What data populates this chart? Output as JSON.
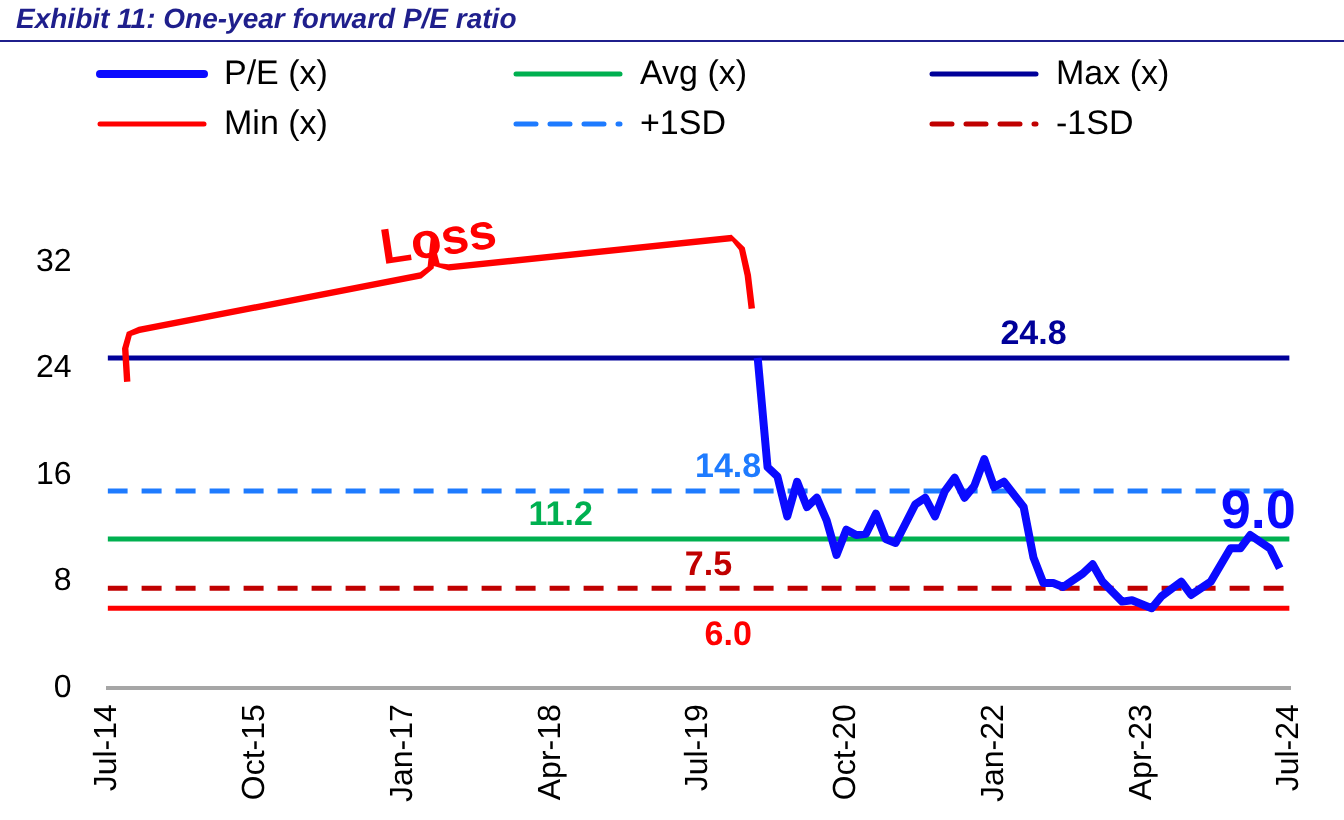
{
  "chart_data": {
    "type": "line",
    "title": "Exhibit 11: One-year forward P/E ratio",
    "xlim": [
      "2014-07",
      "2024-07"
    ],
    "xticks": [
      {
        "value": "2014-07",
        "label": "Jul-14"
      },
      {
        "value": "2015-10",
        "label": "Oct-15"
      },
      {
        "value": "2017-01",
        "label": "Jan-17"
      },
      {
        "value": "2018-04",
        "label": "Apr-18"
      },
      {
        "value": "2019-07",
        "label": "Jul-19"
      },
      {
        "value": "2020-10",
        "label": "Oct-20"
      },
      {
        "value": "2022-01",
        "label": "Jan-22"
      },
      {
        "value": "2023-04",
        "label": "Apr-23"
      },
      {
        "value": "2024-07",
        "label": "Jul-24"
      }
    ],
    "ylim": [
      0,
      32
    ],
    "yticks": [
      0,
      8,
      16,
      24,
      32
    ],
    "grid": false,
    "legend": "top",
    "marker": "none",
    "series": [
      {
        "name": "P/E (x)",
        "color": "#0a0aff",
        "line_style": "solid",
        "x": [
          "2020-01",
          "2020-02",
          "2020-03",
          "2020-04",
          "2020-05",
          "2020-06",
          "2020-07",
          "2020-08",
          "2020-09",
          "2020-10",
          "2020-11",
          "2020-12",
          "2021-01",
          "2021-02",
          "2021-03",
          "2021-05",
          "2021-06",
          "2021-07",
          "2021-08",
          "2021-09",
          "2021-10",
          "2021-11",
          "2021-12",
          "2022-01",
          "2022-02",
          "2022-04",
          "2022-05",
          "2022-06",
          "2022-07",
          "2022-08",
          "2022-10",
          "2022-11",
          "2022-12",
          "2023-02",
          "2023-03",
          "2023-05",
          "2023-06",
          "2023-08",
          "2023-09",
          "2023-11",
          "2024-01",
          "2024-02",
          "2024-03",
          "2024-05",
          "2024-06"
        ],
        "values": [
          24.8,
          16.6,
          15.9,
          12.9,
          15.5,
          13.6,
          14.3,
          12.6,
          10.0,
          11.9,
          11.5,
          11.6,
          13.1,
          11.2,
          10.9,
          13.8,
          14.3,
          12.9,
          14.8,
          15.8,
          14.3,
          15.2,
          17.2,
          15.1,
          15.5,
          13.6,
          9.8,
          7.9,
          7.9,
          7.6,
          8.6,
          9.3,
          8.0,
          6.5,
          6.6,
          6.0,
          6.9,
          8.0,
          7.0,
          8.0,
          10.5,
          10.5,
          11.5,
          10.5,
          9.0
        ],
        "value_labels": [
          null,
          null,
          null,
          null,
          null,
          null,
          null,
          null,
          null,
          null,
          null,
          null,
          null,
          null,
          null,
          null,
          null,
          null,
          null,
          null,
          null,
          null,
          null,
          null,
          null,
          null,
          null,
          null,
          null,
          null,
          null,
          null,
          null,
          null,
          null,
          null,
          null,
          null,
          null,
          null,
          null,
          null,
          null,
          null,
          "9.0"
        ]
      },
      {
        "name": "Avg (x)",
        "color": "#00b050",
        "line_style": "solid",
        "x": [
          "2014-07",
          "2018-05",
          "2024-07"
        ],
        "values": [
          11.2,
          11.2,
          11.2
        ],
        "value_labels": [
          null,
          "11.2",
          null
        ]
      },
      {
        "name": "Max (x)",
        "color": "#000099",
        "line_style": "solid",
        "x": [
          "2014-07",
          "2022-05",
          "2024-07"
        ],
        "values": [
          24.8,
          24.8,
          24.8
        ],
        "value_labels": [
          null,
          "24.8",
          null
        ]
      },
      {
        "name": "Min (x)",
        "color": "#ff0000",
        "line_style": "solid",
        "x": [
          "2014-07",
          "2019-10",
          "2024-07"
        ],
        "values": [
          6.0,
          6.0,
          6.0
        ],
        "value_labels": [
          null,
          "6.0",
          null
        ]
      },
      {
        "name": "+1SD",
        "color": "#1e7bff",
        "line_style": "dashed",
        "x": [
          "2014-07",
          "2019-10",
          "2024-07"
        ],
        "values": [
          14.8,
          14.8,
          14.8
        ],
        "value_labels": [
          null,
          "14.8",
          null
        ]
      },
      {
        "name": "-1SD",
        "color": "#c00000",
        "line_style": "dashed",
        "x": [
          "2014-07",
          "2019-08",
          "2024-07"
        ],
        "values": [
          7.5,
          7.5,
          7.5
        ],
        "value_labels": [
          null,
          "7.5",
          null
        ]
      }
    ],
    "annotations": [
      "Loss"
    ]
  }
}
